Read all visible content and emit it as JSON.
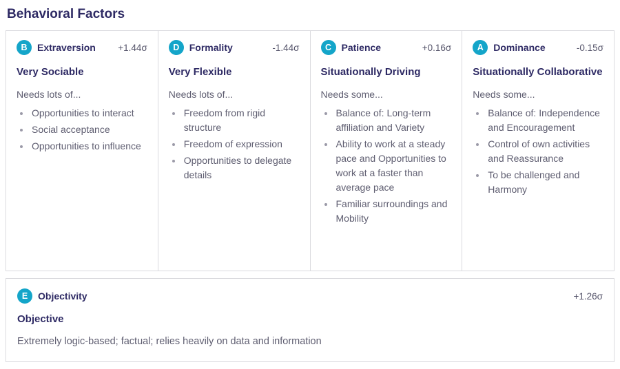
{
  "page": {
    "title": "Behavioral Factors"
  },
  "colors": {
    "badge_bg": "#14a5c9",
    "heading": "#2e2a64",
    "body_text": "#5e5d70",
    "border": "#d9d9de"
  },
  "factors": [
    {
      "badge": "B",
      "name": "Extraversion",
      "sigma": "+1.44σ",
      "subtitle": "Very Sociable",
      "needs_label": "Needs lots of...",
      "needs": [
        "Opportunities to interact",
        "Social acceptance",
        "Opportunities to influence"
      ]
    },
    {
      "badge": "D",
      "name": "Formality",
      "sigma": "-1.44σ",
      "subtitle": "Very Flexible",
      "needs_label": "Needs lots of...",
      "needs": [
        "Freedom from rigid structure",
        "Freedom of expression",
        "Opportunities to delegate details"
      ]
    },
    {
      "badge": "C",
      "name": "Patience",
      "sigma": "+0.16σ",
      "subtitle": "Situationally Driving",
      "needs_label": "Needs some...",
      "needs": [
        "Balance of: Long-term affiliation and Variety",
        "Ability to work at a steady pace and Opportunities to work at a faster than average pace",
        "Familiar surroundings and Mobility"
      ]
    },
    {
      "badge": "A",
      "name": "Dominance",
      "sigma": "-0.15σ",
      "subtitle": "Situationally Collaborative",
      "needs_label": "Needs some...",
      "needs": [
        "Balance of: Independence and Encouragement",
        "Control of own activities and Reassurance",
        "To be challenged and Harmony"
      ]
    }
  ],
  "objectivity": {
    "badge": "E",
    "name": "Objectivity",
    "sigma": "+1.26σ",
    "subtitle": "Objective",
    "description": "Extremely logic-based; factual; relies heavily on data and information"
  }
}
